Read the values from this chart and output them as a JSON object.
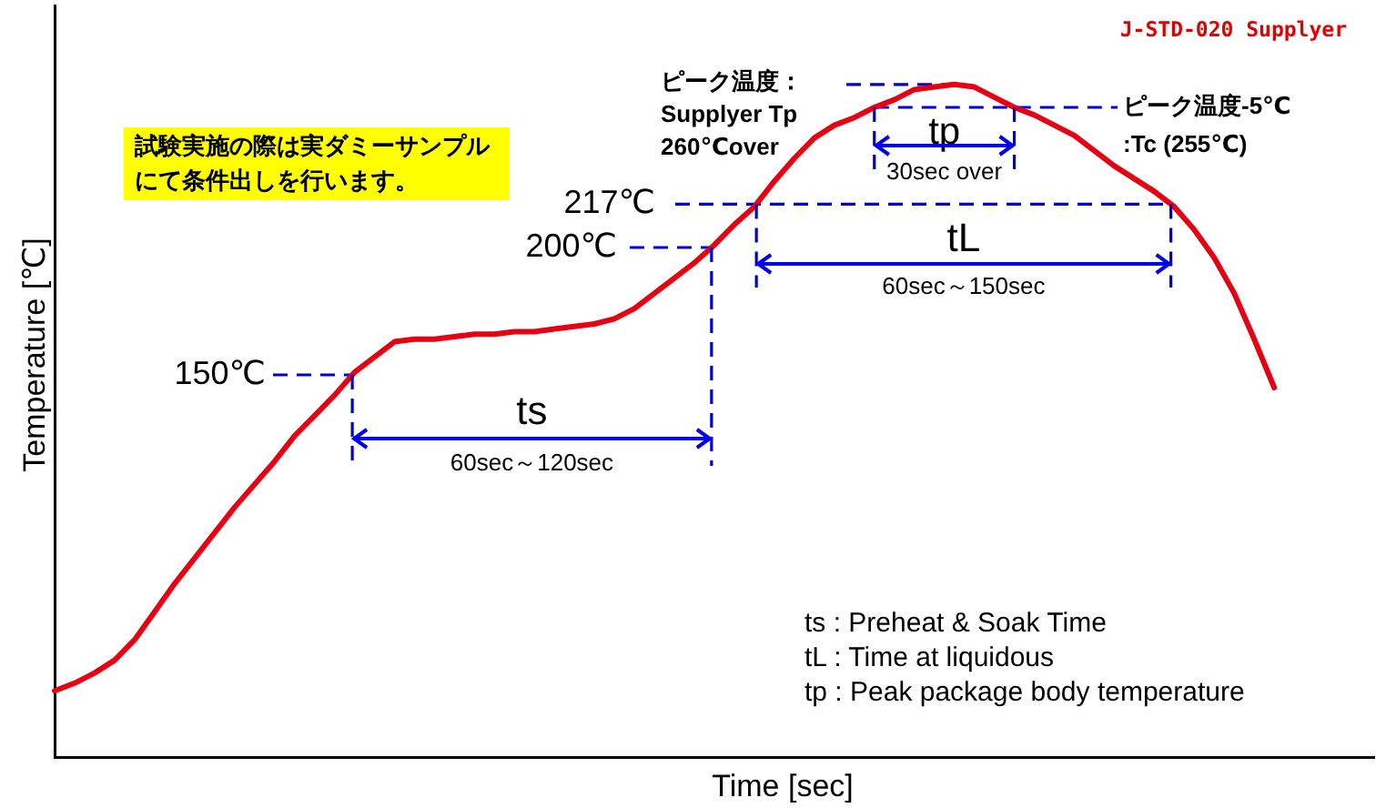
{
  "chart_data": {
    "type": "line",
    "title": "J-STD-020 Supplyer",
    "xlabel": "Time [sec]",
    "ylabel": "Temperature [℃]",
    "categories": [
      null,
      null,
      null,
      null,
      null,
      null,
      null,
      null,
      null,
      null,
      null,
      null,
      null,
      null,
      null,
      null,
      null,
      null,
      null,
      null,
      null,
      null,
      null,
      null,
      null,
      null,
      null,
      null,
      null,
      null,
      null,
      null,
      null,
      null,
      null,
      null,
      null,
      null,
      null,
      null,
      null,
      null,
      null,
      null,
      null,
      null,
      null,
      null,
      null,
      null,
      null,
      null,
      null,
      null,
      null,
      null,
      null,
      null,
      null,
      null,
      null,
      null,
      null,
      null,
      null,
      null,
      null
    ],
    "values": [
      26,
      29,
      33,
      38,
      46,
      57,
      68,
      78,
      88,
      98,
      107,
      116,
      126,
      134,
      142,
      151,
      157,
      163,
      164,
      164,
      165,
      166,
      166,
      167,
      167,
      168,
      169,
      170,
      172,
      176,
      182,
      188,
      194,
      201,
      209,
      216,
      226,
      235,
      243,
      248,
      251,
      255,
      258,
      262,
      263,
      264,
      263,
      259,
      255,
      252,
      248,
      244,
      238,
      232,
      227,
      222,
      216,
      207,
      196,
      182,
      164,
      145,
      null,
      null,
      null,
      null,
      null
    ],
    "color": "#e60012",
    "ylim": [
      0,
      295
    ],
    "tick_labels": false,
    "legend": false,
    "grid": false,
    "marker": "none",
    "line_style": "solid",
    "ref_lines": [
      {
        "axis": "y",
        "value": 150,
        "label": "150℃",
        "color": "#0000cc",
        "line_style": "dashed"
      },
      {
        "axis": "y",
        "value": 200,
        "label": "200℃",
        "color": "#0000cc",
        "line_style": "dashed"
      },
      {
        "axis": "y",
        "value": 217,
        "label": "217℃",
        "color": "#0000cc",
        "line_style": "dashed"
      },
      {
        "axis": "y",
        "value": 264,
        "label": "ピーク温度：\nSupplyer Tp\n260℃over",
        "color": "#0000cc",
        "line_style": "dashed"
      },
      {
        "axis": "y",
        "value": 255,
        "label": "ピーク温度-5℃\n:Tc (255℃)",
        "color": "#0000cc",
        "line_style": "dashed"
      }
    ],
    "annotations": [
      "試験実施の際は実ダミーサンプルにて条件出しを行います。",
      "ts",
      "60sec～120sec",
      "tL",
      "60sec～150sec",
      "tp",
      "30sec over",
      "ts : Preheat & Soak Time",
      "tL : Time at liquidous",
      "tp : Peak package body temperature"
    ]
  }
}
